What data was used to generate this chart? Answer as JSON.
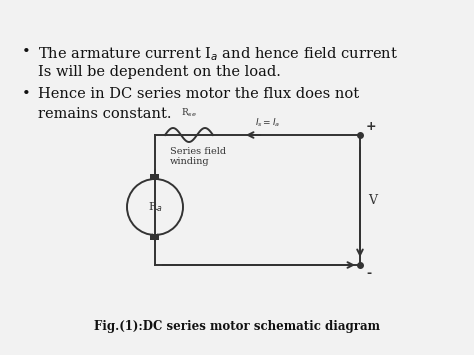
{
  "bg_color": "#f2f2f2",
  "text_color": "#111111",
  "caption": "Fig.(1):DC series motor schematic diagram",
  "circuit": {
    "resistor_label": "R$_{se}$",
    "winding_label": "Series field\nwinding",
    "motor_label": "R$_a$",
    "current_label": "$I_s = I_a$",
    "v_label": "V",
    "plus_label": "+",
    "minus_label": "-"
  },
  "font_size_text": 10.5,
  "font_size_caption": 8.5,
  "font_size_circuit": 7.5
}
